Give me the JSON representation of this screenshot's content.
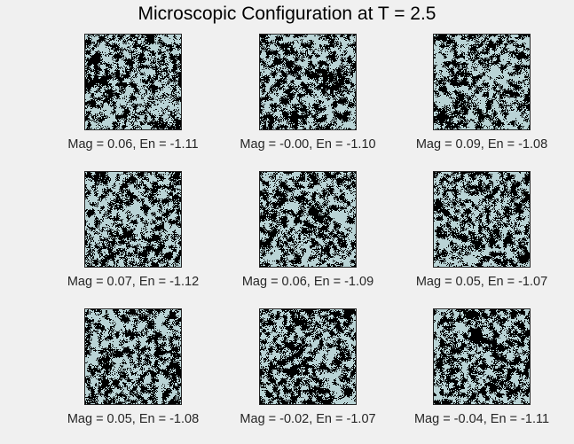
{
  "chart_data": {
    "type": "heatmap",
    "title": "Microscopic Configuration at T = 2.5",
    "temperature": 2.5,
    "colormap": {
      "spin_up": "#b9d3d5",
      "spin_down": "#000000"
    },
    "grid": false,
    "panels": [
      {
        "magnetization": 0.06,
        "energy": -1.11,
        "caption": "Mag = 0.06, En = -1.11"
      },
      {
        "magnetization": -0.0,
        "energy": -1.1,
        "caption": "Mag = -0.00, En = -1.10"
      },
      {
        "magnetization": 0.09,
        "energy": -1.08,
        "caption": "Mag = 0.09, En = -1.08"
      },
      {
        "magnetization": 0.07,
        "energy": -1.12,
        "caption": "Mag = 0.07, En = -1.12"
      },
      {
        "magnetization": 0.06,
        "energy": -1.09,
        "caption": "Mag = 0.06, En = -1.09"
      },
      {
        "magnetization": 0.05,
        "energy": -1.07,
        "caption": "Mag = 0.05, En = -1.07"
      },
      {
        "magnetization": 0.05,
        "energy": -1.08,
        "caption": "Mag = 0.05, En = -1.08"
      },
      {
        "magnetization": -0.02,
        "energy": -1.07,
        "caption": "Mag = -0.02, En = -1.07"
      },
      {
        "magnetization": -0.04,
        "energy": -1.11,
        "caption": "Mag = -0.04, En = -1.11"
      }
    ]
  }
}
